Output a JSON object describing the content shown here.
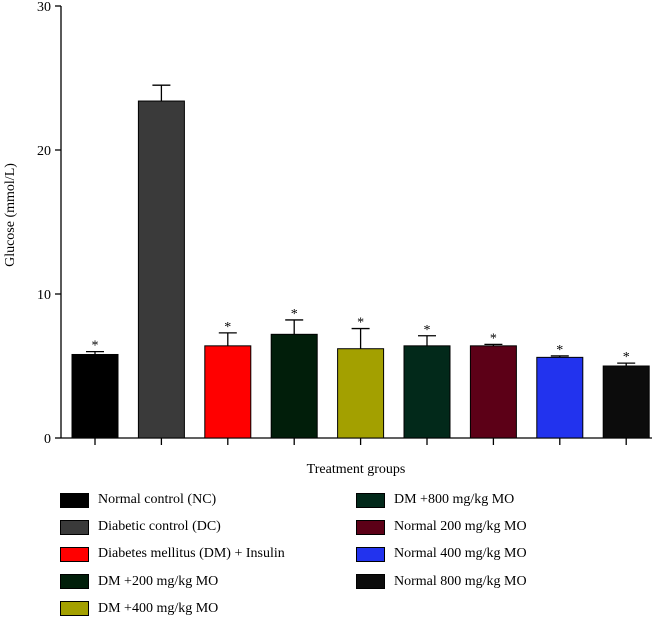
{
  "chart_data": {
    "type": "bar",
    "title": "",
    "xlabel": "Treatment groups",
    "ylabel": "Glucose (mmol/L)",
    "ylim": [
      0,
      30
    ],
    "yticks": [
      0,
      10,
      20,
      30
    ],
    "ytick_labels": [
      "0",
      "10",
      "20",
      "30"
    ],
    "categories": [
      "Normal control (NC)",
      "Diabetic control (DC)",
      "Diabetes mellitus (DM) + Insulin",
      "DM +200 mg/kg MO",
      "DM +400 mg/kg MO",
      "DM +800 mg/kg MO",
      "Normal 200 mg/kg MO",
      "Normal 400 mg/kg MO",
      "Normal 800 mg/kg MO"
    ],
    "values": [
      5.8,
      23.4,
      6.4,
      7.2,
      6.2,
      6.4,
      6.4,
      5.6,
      5.0
    ],
    "errors": [
      0.2,
      1.1,
      0.9,
      1.0,
      1.4,
      0.7,
      0.1,
      0.1,
      0.2
    ],
    "significance": [
      "*",
      "",
      "*",
      "*",
      "*",
      "*",
      "*",
      "*",
      "*"
    ],
    "colors": [
      "#000000",
      "#3a3a3a",
      "#ff0000",
      "#011e0a",
      "#a3a000",
      "#02291a",
      "#5c0017",
      "#2233ee",
      "#0c0c0c"
    ],
    "legend": {
      "placement": "bottom",
      "columns": [
        [
          "Normal control (NC)",
          "Diabetic control (DC)",
          "Diabetes mellitus (DM) + Insulin",
          "DM +200 mg/kg MO",
          "DM +400 mg/kg MO"
        ],
        [
          "DM +800 mg/kg MO",
          "Normal 200 mg/kg MO",
          "Normal 400 mg/kg MO",
          "Normal 800 mg/kg MO"
        ]
      ]
    }
  }
}
